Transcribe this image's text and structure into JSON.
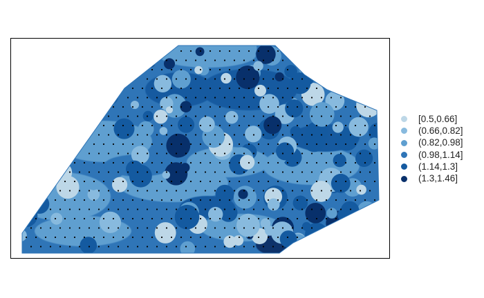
{
  "map": {
    "legend": {
      "items": [
        {
          "label": "[0.5,0.66]",
          "min": 0.5,
          "max": 0.66,
          "color": "#bdd7e7"
        },
        {
          "label": "(0.66,0.82]",
          "min": 0.66,
          "max": 0.82,
          "color": "#88bade"
        },
        {
          "label": "(0.82,0.98]",
          "min": 0.82,
          "max": 0.98,
          "color": "#5f9fd0"
        },
        {
          "label": "(0.98,1.14]",
          "min": 0.98,
          "max": 1.14,
          "color": "#2f75b7"
        },
        {
          "label": "(1.14,1.3]",
          "min": 1.14,
          "max": 1.3,
          "color": "#145aa0"
        },
        {
          "label": "(1.3,1.46]",
          "min": 1.3,
          "max": 1.46,
          "color": "#08306b"
        }
      ]
    },
    "colors": {
      "frame_border": "#000000",
      "sample_point": "#000000",
      "background": "#ffffff"
    }
  }
}
